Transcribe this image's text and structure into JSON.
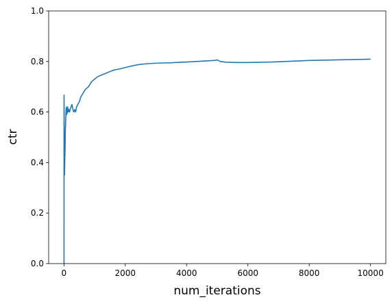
{
  "chart_data": {
    "type": "line",
    "title": "",
    "xlabel": "num_iterations",
    "ylabel": "ctr",
    "xlim": [
      -500,
      10500
    ],
    "ylim": [
      0,
      1.0
    ],
    "x_ticks": [
      0,
      2000,
      4000,
      6000,
      8000,
      10000
    ],
    "x_tick_labels": [
      "0",
      "2000",
      "4000",
      "6000",
      "8000",
      "10000"
    ],
    "y_ticks": [
      0.0,
      0.2,
      0.4,
      0.6,
      0.8,
      1.0
    ],
    "y_tick_labels": [
      "0.0",
      "0.2",
      "0.4",
      "0.6",
      "0.8",
      "1.0"
    ],
    "grid": false,
    "line_color": "#1f77b4",
    "series": [
      {
        "x": [
          1,
          2,
          3,
          5,
          8,
          12,
          18,
          25,
          35,
          45,
          55,
          65,
          75,
          90,
          105,
          120,
          140,
          160,
          180,
          200,
          230,
          260,
          290,
          320,
          350,
          380,
          410,
          450,
          500,
          550,
          600,
          700,
          800,
          900,
          1000,
          1100,
          1200,
          1300,
          1400,
          1500,
          1600,
          1700,
          1800,
          1900,
          2000,
          2200,
          2400,
          2600,
          2800,
          3000,
          3200,
          3500,
          3800,
          4000,
          4300,
          4600,
          4900,
          5000,
          5100,
          5300,
          5600,
          6000,
          6400,
          6800,
          7200,
          7600,
          8000,
          8400,
          8800,
          9200,
          9600,
          10000
        ],
        "y": [
          0.0,
          0.5,
          0.667,
          0.6,
          0.5,
          0.42,
          0.35,
          0.4,
          0.45,
          0.53,
          0.56,
          0.6,
          0.62,
          0.59,
          0.6,
          0.62,
          0.6,
          0.61,
          0.6,
          0.61,
          0.62,
          0.63,
          0.61,
          0.6,
          0.61,
          0.6,
          0.62,
          0.63,
          0.64,
          0.66,
          0.67,
          0.69,
          0.7,
          0.72,
          0.73,
          0.74,
          0.745,
          0.75,
          0.755,
          0.76,
          0.765,
          0.768,
          0.77,
          0.773,
          0.776,
          0.782,
          0.787,
          0.79,
          0.792,
          0.793,
          0.794,
          0.795,
          0.797,
          0.798,
          0.8,
          0.802,
          0.804,
          0.806,
          0.8,
          0.797,
          0.796,
          0.796,
          0.797,
          0.798,
          0.8,
          0.802,
          0.804,
          0.805,
          0.806,
          0.807,
          0.808,
          0.809
        ]
      }
    ]
  }
}
